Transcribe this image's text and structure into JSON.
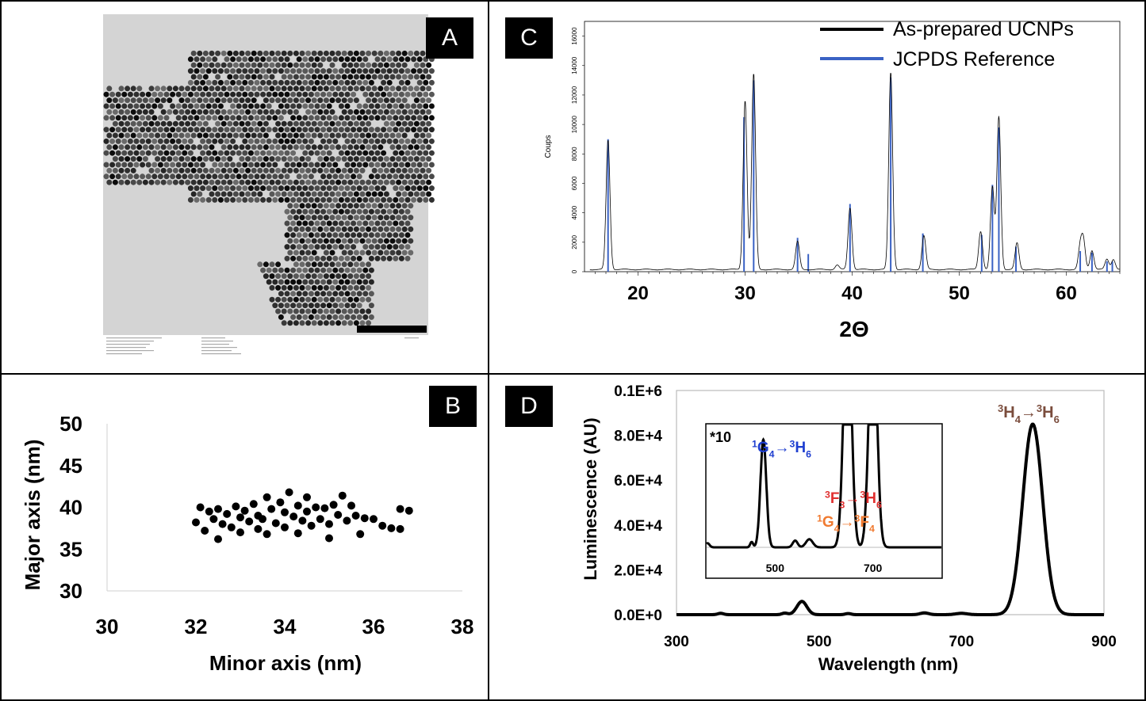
{
  "panels": {
    "a": {
      "label": "A"
    },
    "b": {
      "label": "B"
    },
    "c": {
      "label": "C"
    },
    "d": {
      "label": "D"
    }
  },
  "colors": {
    "blue_ref": "#3a62c4",
    "black": "#000000",
    "label_blue": "#1f3fd0",
    "label_red": "#e03030",
    "label_orange": "#f07a30",
    "label_brown": "#7a4c3c"
  },
  "tem_image": {
    "description_icon": "nanoparticle-micrograph"
  },
  "chart_data": [
    {
      "id": "B",
      "type": "scatter",
      "xlabel": "Minor axis (nm)",
      "ylabel": "Major axis (nm)",
      "xlim": [
        30,
        38
      ],
      "ylim": [
        30,
        50
      ],
      "xticks": [
        "30",
        "32",
        "34",
        "36",
        "38"
      ],
      "yticks": [
        "30",
        "35",
        "40",
        "45",
        "50"
      ],
      "grid": false,
      "points": [
        [
          32.0,
          38.2
        ],
        [
          32.1,
          40.0
        ],
        [
          32.2,
          37.2
        ],
        [
          32.3,
          39.5
        ],
        [
          32.4,
          38.6
        ],
        [
          32.5,
          36.2
        ],
        [
          32.5,
          39.8
        ],
        [
          32.6,
          38.0
        ],
        [
          32.7,
          39.2
        ],
        [
          32.8,
          37.6
        ],
        [
          32.9,
          40.1
        ],
        [
          33.0,
          38.8
        ],
        [
          33.0,
          37.0
        ],
        [
          33.1,
          39.6
        ],
        [
          33.2,
          38.3
        ],
        [
          33.3,
          40.4
        ],
        [
          33.4,
          37.4
        ],
        [
          33.4,
          39.0
        ],
        [
          33.5,
          38.6
        ],
        [
          33.6,
          41.2
        ],
        [
          33.6,
          36.8
        ],
        [
          33.7,
          39.8
        ],
        [
          33.8,
          38.1
        ],
        [
          33.9,
          40.6
        ],
        [
          34.0,
          37.6
        ],
        [
          34.0,
          39.4
        ],
        [
          34.1,
          41.8
        ],
        [
          34.2,
          38.9
        ],
        [
          34.3,
          36.9
        ],
        [
          34.3,
          40.2
        ],
        [
          34.4,
          38.4
        ],
        [
          34.5,
          41.2
        ],
        [
          34.5,
          39.5
        ],
        [
          34.6,
          37.8
        ],
        [
          34.7,
          40.0
        ],
        [
          34.8,
          38.6
        ],
        [
          34.9,
          39.9
        ],
        [
          35.0,
          36.3
        ],
        [
          35.0,
          38.0
        ],
        [
          35.1,
          40.3
        ],
        [
          35.2,
          39.1
        ],
        [
          35.3,
          41.4
        ],
        [
          35.4,
          38.4
        ],
        [
          35.5,
          40.2
        ],
        [
          35.6,
          39.0
        ],
        [
          35.7,
          36.8
        ],
        [
          35.8,
          38.7
        ],
        [
          36.0,
          38.6
        ],
        [
          36.2,
          37.8
        ],
        [
          36.4,
          37.5
        ],
        [
          36.6,
          39.8
        ],
        [
          36.6,
          37.4
        ],
        [
          36.8,
          39.6
        ]
      ]
    },
    {
      "id": "C",
      "type": "line",
      "xlabel": "2Θ",
      "ylabel": "Coups",
      "xlim": [
        15,
        65
      ],
      "ylim": [
        0,
        17000
      ],
      "xticks": [
        "20",
        "30",
        "40",
        "50",
        "60"
      ],
      "yticks": [
        "0",
        "2000",
        "4000",
        "6000",
        "8000",
        "10000",
        "12000",
        "14000",
        "16000"
      ],
      "legend_position": "top-right",
      "series": [
        {
          "name": "As-prepared UCNPs",
          "color": "#000000",
          "peaks": [
            [
              17.2,
              8800
            ],
            [
              30.0,
              11500
            ],
            [
              30.8,
              13300
            ],
            [
              34.9,
              1900
            ],
            [
              38.6,
              300
            ],
            [
              39.8,
              4200
            ],
            [
              43.6,
              13400
            ],
            [
              46.7,
              2300
            ],
            [
              52.0,
              2600
            ],
            [
              53.1,
              5600
            ],
            [
              53.7,
              10400
            ],
            [
              55.4,
              1800
            ],
            [
              61.3,
              1500
            ],
            [
              61.6,
              1900
            ],
            [
              62.4,
              1300
            ],
            [
              63.8,
              700
            ],
            [
              64.4,
              700
            ]
          ]
        },
        {
          "name": "JCPDS Reference",
          "color": "#3a62c4",
          "sticks": [
            [
              17.2,
              9000
            ],
            [
              29.9,
              10500
            ],
            [
              30.8,
              13000
            ],
            [
              34.9,
              2300
            ],
            [
              35.9,
              1200
            ],
            [
              39.8,
              4600
            ],
            [
              43.6,
              13200
            ],
            [
              46.6,
              2600
            ],
            [
              52.1,
              2500
            ],
            [
              53.1,
              5900
            ],
            [
              53.7,
              9800
            ],
            [
              55.3,
              1700
            ],
            [
              61.3,
              1400
            ],
            [
              62.4,
              1300
            ],
            [
              63.8,
              700
            ],
            [
              64.3,
              700
            ]
          ]
        }
      ]
    },
    {
      "id": "D",
      "type": "line",
      "xlabel": "Wavelength (nm)",
      "ylabel": "Luminescence (AU)",
      "xlim": [
        300,
        900
      ],
      "ylim": [
        0,
        100000
      ],
      "xticks": [
        "300",
        "500",
        "700",
        "900"
      ],
      "yticks": [
        "0.0E+0",
        "2.0E+4",
        "4.0E+4",
        "6.0E+4",
        "8.0E+4",
        "0.1E+6"
      ],
      "peaks": [
        [
          362,
          600,
          4
        ],
        [
          452,
          700,
          4
        ],
        [
          476,
          5900,
          7
        ],
        [
          541,
          500,
          4
        ],
        [
          648,
          800,
          6
        ],
        [
          700,
          600,
          8
        ],
        [
          800,
          85000,
          14
        ]
      ],
      "annotations": [
        {
          "text_main": "H",
          "sup1": "3",
          "sub1": "4",
          "arrow": "→",
          "sup2": "3",
          "main2": "H",
          "sub2": "6",
          "x": 800,
          "y": 88000
        }
      ],
      "inset": {
        "xticks": [
          "500",
          "700"
        ],
        "xlim": [
          360,
          840
        ],
        "scale_label": "*10",
        "peaks": [
          [
            362,
            1500,
            4
          ],
          [
            452,
            2000,
            3
          ],
          [
            476,
            40000,
            6
          ],
          [
            541,
            2500,
            5
          ],
          [
            570,
            3000,
            7
          ],
          [
            648,
            90000,
            8
          ],
          [
            700,
            90000,
            8
          ]
        ],
        "annotations": [
          {
            "sup1": "1",
            "main1": "G",
            "sub1": "4",
            "arrow": "→",
            "sup2": "3",
            "main2": "H",
            "sub2": "6"
          },
          {
            "sup1": "3",
            "main1": "F",
            "sub1": "3",
            "arrow": "→",
            "sup2": "3",
            "main2": "H",
            "sub2": "6"
          },
          {
            "sup1": "1",
            "main1": "G",
            "sub1": "4",
            "arrow": "→",
            "sup2": "3",
            "main2": "F",
            "sub2": "4"
          }
        ]
      }
    }
  ]
}
